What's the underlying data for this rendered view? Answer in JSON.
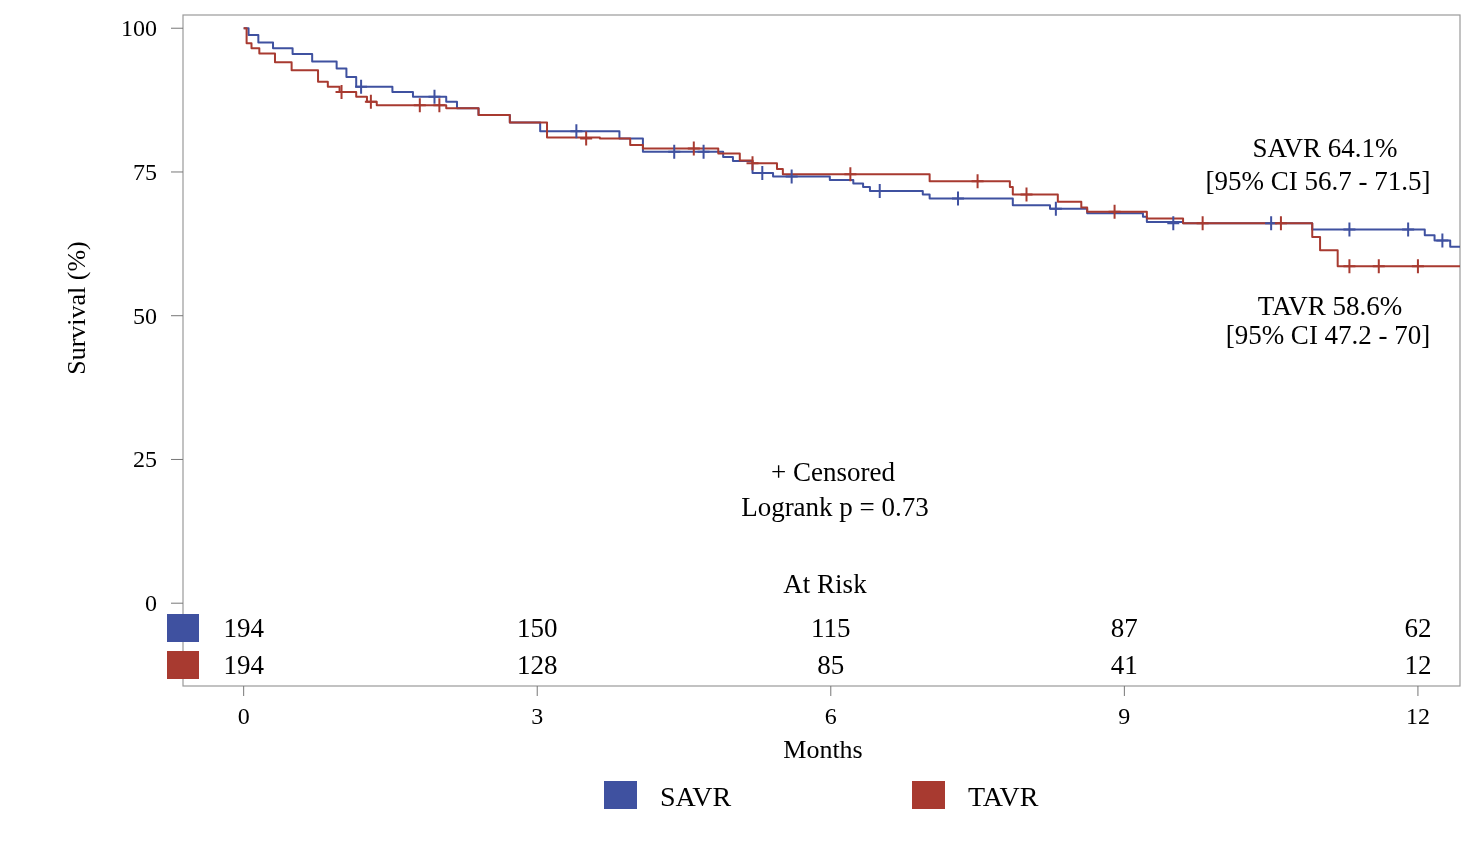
{
  "chart_data": {
    "type": "step",
    "xlabel": "Months",
    "ylabel": "Survival (%)",
    "xlim": [
      -0.62,
      12.43
    ],
    "ylim": [
      -14.4,
      102.3
    ],
    "xticks": [
      0,
      3,
      6,
      9,
      12
    ],
    "yticks": [
      0,
      25,
      50,
      75,
      100
    ],
    "grid": false,
    "legend": "bottom",
    "line_style": "solid",
    "series": [
      {
        "name": "SAVR",
        "color": "#3f51a0",
        "x": [
          0,
          0.05,
          0.15,
          0.3,
          0.5,
          0.7,
          0.95,
          1.05,
          1.15,
          1.52,
          1.73,
          2.07,
          2.18,
          2.4,
          2.72,
          3.03,
          3.84,
          4.08,
          4.9,
          5.0,
          5.2,
          5.41,
          5.99,
          6.23,
          6.33,
          6.4,
          6.94,
          7.01,
          7.86,
          8.24,
          8.62,
          9.19,
          9.23,
          9.6,
          10.92,
          12.07,
          12.17,
          12.33,
          12.43
        ],
        "values": [
          100,
          98.8,
          97.5,
          96.5,
          95.5,
          94.2,
          93,
          91.5,
          89.8,
          88.9,
          88.1,
          87.2,
          86.1,
          84.9,
          83.6,
          82.1,
          80.8,
          78.5,
          77.6,
          76.9,
          74.8,
          74.2,
          73.6,
          73.0,
          72.4,
          71.7,
          71.1,
          70.4,
          69.2,
          68.6,
          67.8,
          67.2,
          66.3,
          66.1,
          65.0,
          64.0,
          63.1,
          62.0,
          62.0
        ]
      },
      {
        "name": "TAVR",
        "color": "#a83a30",
        "x": [
          0,
          0.03,
          0.08,
          0.16,
          0.32,
          0.49,
          0.76,
          0.86,
          0.98,
          1.15,
          1.26,
          1.36,
          2.07,
          2.4,
          2.72,
          3.1,
          3.64,
          3.95,
          4.08,
          4.85,
          5.07,
          5.2,
          5.45,
          5.51,
          7.01,
          7.83,
          7.86,
          8.32,
          8.56,
          8.62,
          9.23,
          9.6,
          10.92,
          11.0,
          11.18,
          12.43
        ],
        "values": [
          100,
          97.4,
          96.5,
          95.6,
          94.1,
          92.7,
          90.7,
          89.8,
          88.9,
          88.1,
          87.2,
          86.6,
          86.1,
          84.9,
          83.6,
          81.0,
          80.8,
          79.7,
          79.1,
          78.2,
          77.0,
          76.5,
          75.5,
          74.6,
          73.4,
          72.4,
          71.1,
          69.8,
          68.8,
          68.1,
          66.9,
          66.1,
          63.7,
          61.4,
          58.6,
          58.6
        ]
      },
      {
        "type": "scatter",
        "marker": "cross",
        "color": "#3f51a0",
        "x": [
          1.2,
          1.95,
          3.4,
          4.4,
          4.7,
          5.3,
          5.6,
          6.5,
          7.3,
          8.3,
          9.5,
          10.5,
          11.3,
          11.9,
          12.25
        ],
        "values": [
          89.8,
          88.1,
          82.1,
          78.5,
          78.5,
          74.8,
          74.2,
          71.7,
          70.4,
          68.6,
          66.1,
          66.1,
          65.0,
          65.0,
          63.1
        ]
      },
      {
        "type": "scatter",
        "marker": "cross",
        "color": "#a83a30",
        "x": [
          1.0,
          1.3,
          1.8,
          2.0,
          3.5,
          4.6,
          5.2,
          6.2,
          7.5,
          8.0,
          8.9,
          9.8,
          10.6,
          11.3,
          11.6,
          12.0
        ],
        "values": [
          88.9,
          87.2,
          86.6,
          86.6,
          80.8,
          79.1,
          76.5,
          74.6,
          73.4,
          71.1,
          68.1,
          66.1,
          66.1,
          58.6,
          58.6,
          58.6
        ]
      }
    ],
    "annotations": [
      "SAVR  64.1%",
      "[95% CI 56.7 - 71.5]",
      "TAVR 58.6%",
      "[95% CI 47.2 - 70]",
      "+ Censored",
      "Logrank p = 0.73",
      "At Risk",
      "194",
      "150",
      "115",
      "87",
      "62",
      "194",
      "128",
      "85",
      "41",
      "12"
    ]
  }
}
